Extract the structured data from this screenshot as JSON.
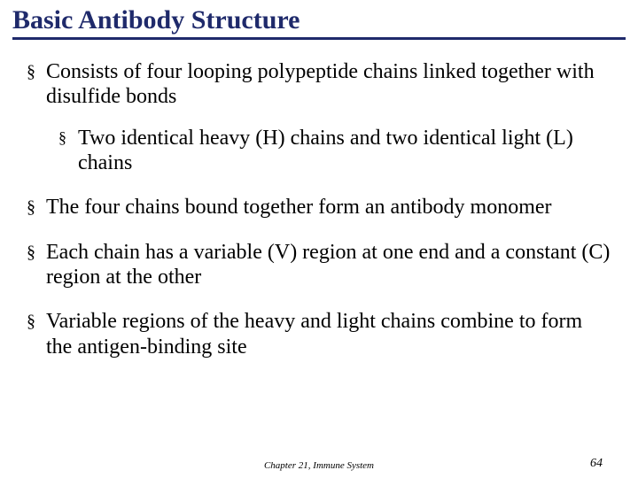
{
  "colors": {
    "title": "#1f2a6b",
    "underline": "#1f2a6b",
    "text": "#000000",
    "background": "#ffffff"
  },
  "typography": {
    "title_fontsize_pt": 22,
    "body_fontsize_pt": 18,
    "footer_fontsize_pt": 8,
    "pagenum_fontsize_pt": 10,
    "family": "Times New Roman"
  },
  "title": "Basic Antibody Structure",
  "bullets": [
    {
      "level": 1,
      "text": "Consists of four looping polypeptide chains linked together with disulfide bonds"
    },
    {
      "level": 2,
      "text": "Two identical heavy (H) chains and two identical light (L) chains"
    },
    {
      "level": 1,
      "text": "The four chains bound together form an antibody monomer"
    },
    {
      "level": 1,
      "text": "Each chain has a variable (V) region at one end and a constant (C) region at the other"
    },
    {
      "level": 1,
      "text": "Variable regions of the heavy and light chains combine to form the antigen-binding site"
    }
  ],
  "footer": "Chapter 21, Immune System",
  "page_number": "64",
  "bullet_glyph": "§"
}
